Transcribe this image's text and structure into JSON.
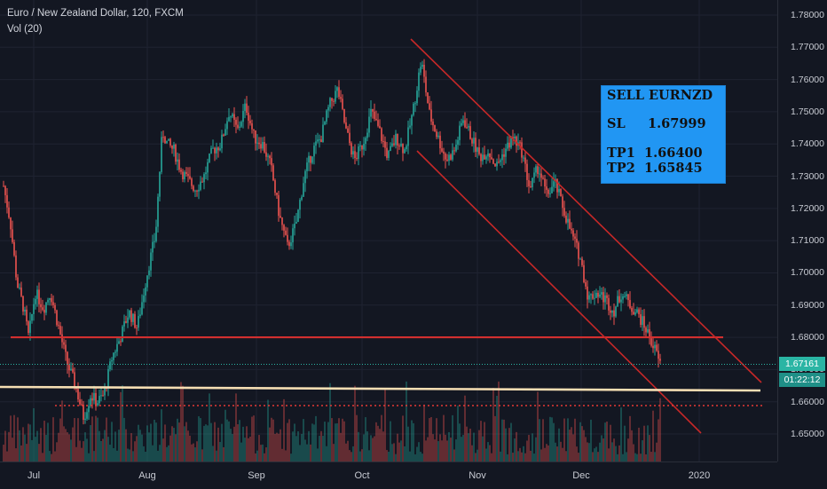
{
  "header": {
    "symbol_line": "Euro / New Zealand Dollar, 120, FXCM",
    "volume_line": "Vol (20)"
  },
  "colors": {
    "background": "#131722",
    "up_candle": "#26a69a",
    "down_candle": "#ef5350",
    "channel": "#c62828",
    "support_line": "#d32f2f",
    "long_line": "#f5deb3",
    "last_price_badge": "#2ab5a4",
    "timer_badge": "#1f8f87"
  },
  "price_axis": {
    "ticks": [
      "1.78000",
      "1.77000",
      "1.76000",
      "1.75000",
      "1.74000",
      "1.73000",
      "1.72000",
      "1.71000",
      "1.70000",
      "1.69000",
      "1.68000",
      "1.67000",
      "1.66000",
      "1.65000"
    ],
    "range": [
      1.645,
      1.781
    ]
  },
  "time_axis": {
    "labels": [
      "Jul",
      "Aug",
      "Sep",
      "Oct",
      "Nov",
      "Dec",
      "2020"
    ]
  },
  "last_price": "1.67161",
  "countdown": "01:22:12",
  "trade_box": {
    "title": "SELL EURNZD",
    "sl_label": "SL",
    "sl_value": "1.67999",
    "tp1_label": "TP1",
    "tp1_value": "1.66400",
    "tp2_label": "TP2",
    "tp2_value": "1.65845"
  },
  "chart_data": {
    "type": "candlestick",
    "title": "Euro / New Zealand Dollar, 120, FXCM",
    "ylim": [
      1.645,
      1.781
    ],
    "x_labels": [
      "Jul",
      "Aug",
      "Sep",
      "Oct",
      "Nov",
      "Dec",
      "2020"
    ],
    "path": [
      [
        0,
        1.727
      ],
      [
        0.8,
        1.716
      ],
      [
        1.6,
        1.697
      ],
      [
        2.4,
        1.689
      ],
      [
        3.0,
        1.68
      ],
      [
        3.8,
        1.694
      ],
      [
        4.8,
        1.689
      ],
      [
        5.6,
        1.694
      ],
      [
        6.6,
        1.683
      ],
      [
        7.6,
        1.672
      ],
      [
        8.6,
        1.665
      ],
      [
        9.6,
        1.655
      ],
      [
        10.4,
        1.662
      ],
      [
        11.2,
        1.66
      ],
      [
        12.0,
        1.662
      ],
      [
        13.0,
        1.674
      ],
      [
        14.0,
        1.68
      ],
      [
        15.0,
        1.688
      ],
      [
        16.0,
        1.683
      ],
      [
        17.2,
        1.7
      ],
      [
        18.2,
        1.712
      ],
      [
        19.0,
        1.744
      ],
      [
        19.6,
        1.74
      ],
      [
        20.4,
        1.738
      ],
      [
        21.2,
        1.732
      ],
      [
        22.0,
        1.729
      ],
      [
        23.0,
        1.726
      ],
      [
        24.0,
        1.73
      ],
      [
        25.0,
        1.738
      ],
      [
        26.0,
        1.74
      ],
      [
        27.0,
        1.75
      ],
      [
        28.0,
        1.744
      ],
      [
        29.0,
        1.752
      ],
      [
        30.0,
        1.742
      ],
      [
        31.0,
        1.74
      ],
      [
        32.0,
        1.733
      ],
      [
        33.0,
        1.718
      ],
      [
        34.0,
        1.708
      ],
      [
        35.0,
        1.715
      ],
      [
        36.0,
        1.73
      ],
      [
        37.0,
        1.738
      ],
      [
        38.0,
        1.742
      ],
      [
        39.0,
        1.752
      ],
      [
        40.0,
        1.757
      ],
      [
        41.0,
        1.744
      ],
      [
        42.0,
        1.735
      ],
      [
        43.0,
        1.74
      ],
      [
        44.0,
        1.75
      ],
      [
        45.0,
        1.744
      ],
      [
        46.0,
        1.736
      ],
      [
        47.0,
        1.742
      ],
      [
        48.0,
        1.738
      ],
      [
        49.0,
        1.75
      ],
      [
        50.0,
        1.766
      ],
      [
        51.0,
        1.749
      ],
      [
        52.0,
        1.742
      ],
      [
        53.0,
        1.735
      ],
      [
        54.0,
        1.738
      ],
      [
        55.0,
        1.748
      ],
      [
        56.0,
        1.742
      ],
      [
        57.0,
        1.736
      ],
      [
        58.0,
        1.738
      ],
      [
        59.0,
        1.733
      ],
      [
        60.0,
        1.738
      ],
      [
        61.0,
        1.742
      ],
      [
        62.0,
        1.738
      ],
      [
        63.0,
        1.726
      ],
      [
        64.0,
        1.733
      ],
      [
        65.0,
        1.724
      ],
      [
        66.0,
        1.728
      ],
      [
        67.0,
        1.72
      ],
      [
        68.0,
        1.712
      ],
      [
        69.0,
        1.705
      ],
      [
        70.0,
        1.692
      ],
      [
        71.0,
        1.694
      ],
      [
        72.0,
        1.692
      ],
      [
        73.0,
        1.688
      ],
      [
        74.0,
        1.694
      ],
      [
        75.0,
        1.69
      ],
      [
        76.0,
        1.687
      ],
      [
        77.0,
        1.682
      ],
      [
        78.0,
        1.676
      ],
      [
        78.6,
        1.6716
      ]
    ],
    "path_x_range": [
      0,
      78.6
    ],
    "annotations": [
      {
        "name": "support",
        "price": 1.68
      },
      {
        "name": "upper-channel",
        "from": [
          1.772,
          "mid-Oct"
        ],
        "to": [
          1.664,
          "2020+"
        ]
      },
      {
        "name": "lower-channel",
        "from": [
          1.738,
          "late-Oct"
        ],
        "to": [
          1.651,
          "2020"
        ]
      },
      {
        "name": "long-support",
        "from": 1.6645,
        "to": 1.6632
      },
      {
        "name": "target-dotted",
        "price": 1.6584
      }
    ]
  }
}
